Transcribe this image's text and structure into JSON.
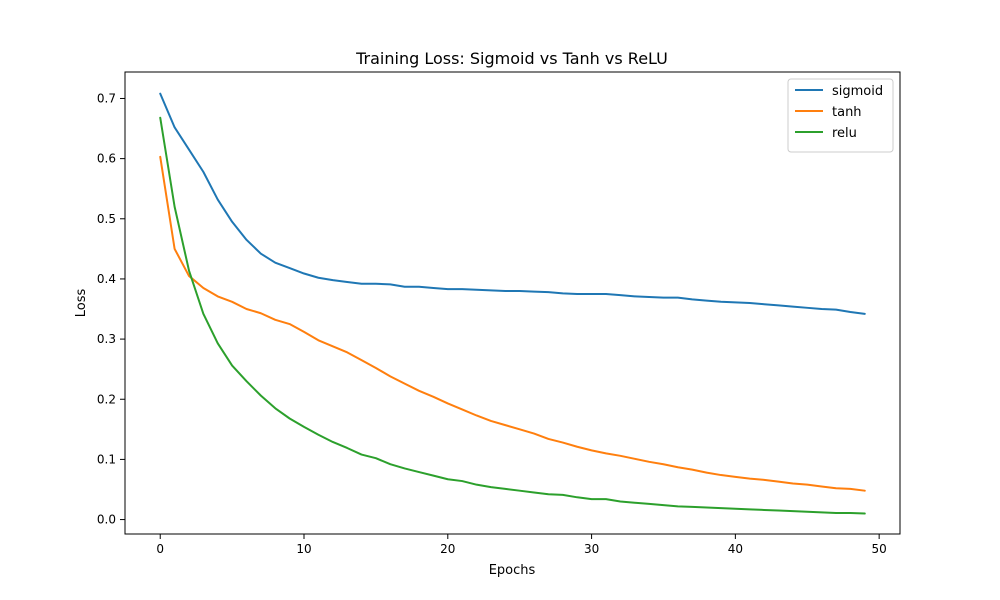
{
  "chart_data": {
    "type": "line",
    "title": "Training Loss: Sigmoid vs Tanh vs ReLU",
    "xlabel": "Epochs",
    "ylabel": "Loss",
    "xlim": [
      -2.45,
      51.45
    ],
    "ylim": [
      -0.024,
      0.744
    ],
    "xticks": [
      0,
      10,
      20,
      30,
      40,
      50
    ],
    "yticks": [
      0.0,
      0.1,
      0.2,
      0.3,
      0.4,
      0.5,
      0.6,
      0.7
    ],
    "xtick_labels": [
      "0",
      "10",
      "20",
      "30",
      "40",
      "50"
    ],
    "ytick_labels": [
      "0.0",
      "0.1",
      "0.2",
      "0.3",
      "0.4",
      "0.5",
      "0.6",
      "0.7"
    ],
    "grid": false,
    "legend_position": "top-right",
    "x": [
      0,
      1,
      2,
      3,
      4,
      5,
      6,
      7,
      8,
      9,
      10,
      11,
      12,
      13,
      14,
      15,
      16,
      17,
      18,
      19,
      20,
      21,
      22,
      23,
      24,
      25,
      26,
      27,
      28,
      29,
      30,
      31,
      32,
      33,
      34,
      35,
      36,
      37,
      38,
      39,
      40,
      41,
      42,
      43,
      44,
      45,
      46,
      47,
      48,
      49
    ],
    "series": [
      {
        "name": "sigmoid",
        "color": "#1f77b4",
        "values": [
          0.708,
          0.652,
          0.615,
          0.578,
          0.532,
          0.495,
          0.465,
          0.442,
          0.427,
          0.418,
          0.409,
          0.402,
          0.398,
          0.395,
          0.392,
          0.392,
          0.391,
          0.387,
          0.387,
          0.385,
          0.383,
          0.383,
          0.382,
          0.381,
          0.38,
          0.38,
          0.379,
          0.378,
          0.376,
          0.375,
          0.375,
          0.375,
          0.373,
          0.371,
          0.37,
          0.369,
          0.369,
          0.366,
          0.364,
          0.362,
          0.361,
          0.36,
          0.358,
          0.356,
          0.354,
          0.352,
          0.35,
          0.349,
          0.345,
          0.342
        ]
      },
      {
        "name": "tanh",
        "color": "#ff7f0e",
        "values": [
          0.603,
          0.45,
          0.405,
          0.385,
          0.371,
          0.362,
          0.35,
          0.343,
          0.332,
          0.325,
          0.312,
          0.298,
          0.288,
          0.278,
          0.265,
          0.252,
          0.238,
          0.226,
          0.214,
          0.204,
          0.193,
          0.183,
          0.173,
          0.164,
          0.157,
          0.15,
          0.143,
          0.134,
          0.128,
          0.121,
          0.115,
          0.11,
          0.106,
          0.101,
          0.096,
          0.092,
          0.087,
          0.083,
          0.078,
          0.074,
          0.071,
          0.068,
          0.066,
          0.063,
          0.06,
          0.058,
          0.055,
          0.052,
          0.051,
          0.048
        ]
      },
      {
        "name": "relu",
        "color": "#2ca02c",
        "values": [
          0.668,
          0.52,
          0.414,
          0.342,
          0.293,
          0.256,
          0.23,
          0.206,
          0.185,
          0.168,
          0.154,
          0.141,
          0.129,
          0.119,
          0.108,
          0.102,
          0.092,
          0.085,
          0.079,
          0.073,
          0.067,
          0.064,
          0.058,
          0.054,
          0.051,
          0.048,
          0.045,
          0.042,
          0.041,
          0.037,
          0.034,
          0.034,
          0.03,
          0.028,
          0.026,
          0.024,
          0.022,
          0.021,
          0.02,
          0.019,
          0.018,
          0.017,
          0.016,
          0.015,
          0.014,
          0.013,
          0.012,
          0.011,
          0.011,
          0.01
        ]
      }
    ]
  }
}
